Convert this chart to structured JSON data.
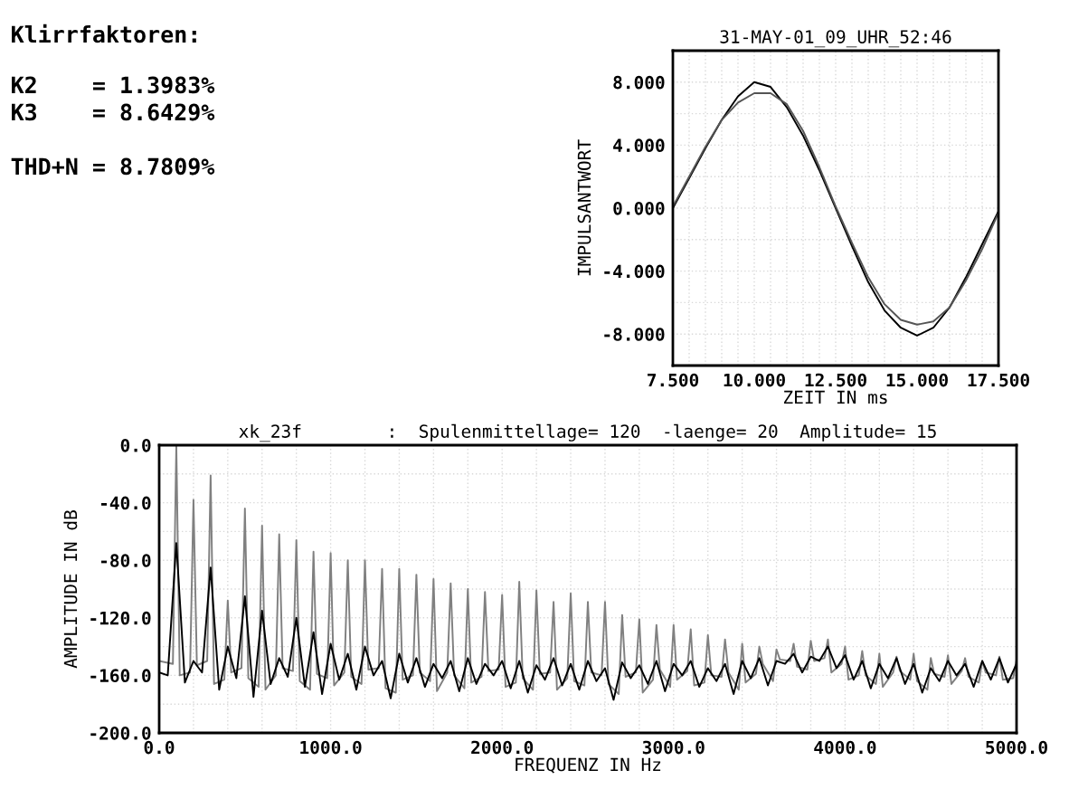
{
  "chart_data": [
    {
      "type": "other",
      "title": "Klirrfaktoren:",
      "annotations": [
        "K2    = 1.3983%",
        "K3    = 8.6429%",
        "THD+N = 8.7809%"
      ]
    },
    {
      "type": "line",
      "title": "31-MAY-01_09_UHR_52:46",
      "xlabel": "ZEIT IN ms",
      "ylabel": "IMPULSANTWORT",
      "x": [
        7.5,
        8,
        8.5,
        9,
        9.5,
        10,
        10.5,
        11,
        11.5,
        12,
        12.5,
        13,
        13.5,
        14,
        14.5,
        15,
        15.5,
        16,
        16.5,
        17,
        17.5
      ],
      "series": [
        {
          "color": "#000000",
          "values": [
            0,
            1.9,
            3.8,
            5.6,
            7.1,
            8.0,
            7.7,
            6.4,
            4.6,
            2.4,
            0,
            -2.4,
            -4.7,
            -6.5,
            -7.6,
            -8.1,
            -7.6,
            -6.3,
            -4.4,
            -2.3,
            -0.2
          ]
        },
        {
          "color": "#555555",
          "values": [
            0.1,
            2.0,
            3.9,
            5.6,
            6.7,
            7.3,
            7.3,
            6.6,
            4.9,
            2.6,
            0.1,
            -2.2,
            -4.4,
            -6.1,
            -7.1,
            -7.4,
            -7.2,
            -6.3,
            -4.6,
            -2.6,
            -0.3
          ]
        }
      ],
      "xlim": [
        7.5,
        17.5
      ],
      "ylim": [
        -10,
        10
      ],
      "xticks": [
        {
          "value": 7.5,
          "label": "7.500"
        },
        {
          "value": 8,
          "label": null
        },
        {
          "value": 8.5,
          "label": null
        },
        {
          "value": 9,
          "label": null
        },
        {
          "value": 9.5,
          "label": null
        },
        {
          "value": 10,
          "label": "10.000"
        },
        {
          "value": 10.5,
          "label": null
        },
        {
          "value": 11,
          "label": null
        },
        {
          "value": 11.5,
          "label": null
        },
        {
          "value": 12,
          "label": null
        },
        {
          "value": 12.5,
          "label": "12.500"
        },
        {
          "value": 13,
          "label": null
        },
        {
          "value": 13.5,
          "label": null
        },
        {
          "value": 14,
          "label": null
        },
        {
          "value": 14.5,
          "label": null
        },
        {
          "value": 15,
          "label": "15.000"
        },
        {
          "value": 15.5,
          "label": null
        },
        {
          "value": 16,
          "label": null
        },
        {
          "value": 16.5,
          "label": null
        },
        {
          "value": 17,
          "label": null
        },
        {
          "value": 17.5,
          "label": "17.500"
        }
      ],
      "yticks": [
        {
          "value": -8,
          "label": "-8.000"
        },
        {
          "value": -6,
          "label": null
        },
        {
          "value": -4,
          "label": "-4.000"
        },
        {
          "value": -2,
          "label": null
        },
        {
          "value": 0,
          "label": "0.000"
        },
        {
          "value": 2,
          "label": null
        },
        {
          "value": 4,
          "label": "4.000"
        },
        {
          "value": 6,
          "label": null
        },
        {
          "value": 8,
          "label": "8.000"
        }
      ],
      "grid": true
    },
    {
      "type": "line",
      "title": "xk_23f        :  Spulenmittellage= 120  -laenge= 20  Amplitude= 15",
      "xlabel": "FREQUENZ IN Hz",
      "ylabel": "AMPLITUDE IN dB",
      "x": [
        0,
        50,
        100,
        150,
        200,
        250,
        300,
        350,
        400,
        450,
        500,
        550,
        600,
        650,
        700,
        750,
        800,
        850,
        900,
        950,
        1000,
        1050,
        1100,
        1150,
        1200,
        1250,
        1300,
        1350,
        1400,
        1450,
        1500,
        1550,
        1600,
        1650,
        1700,
        1750,
        1800,
        1850,
        1900,
        1950,
        2000,
        2050,
        2100,
        2150,
        2200,
        2250,
        2300,
        2350,
        2400,
        2450,
        2500,
        2550,
        2600,
        2650,
        2700,
        2750,
        2800,
        2850,
        2900,
        2950,
        3000,
        3050,
        3100,
        3150,
        3200,
        3250,
        3300,
        3350,
        3400,
        3450,
        3500,
        3550,
        3600,
        3650,
        3700,
        3750,
        3800,
        3850,
        3900,
        3950,
        4000,
        4050,
        4100,
        4150,
        4200,
        4250,
        4300,
        4350,
        4400,
        4450,
        4500,
        4550,
        4600,
        4650,
        4700,
        4750,
        4800,
        4850,
        4900,
        4950,
        5000
      ],
      "series": [
        {
          "color": "#808080",
          "x": [
            0,
            80,
            100,
            120,
            180,
            200,
            220,
            280,
            300,
            320,
            380,
            400,
            420,
            480,
            500,
            520,
            580,
            600,
            620,
            680,
            700,
            720,
            780,
            800,
            820,
            880,
            900,
            920,
            980,
            1000,
            1020,
            1080,
            1100,
            1120,
            1180,
            1200,
            1220,
            1280,
            1300,
            1320,
            1380,
            1400,
            1420,
            1480,
            1500,
            1520,
            1580,
            1600,
            1620,
            1680,
            1700,
            1720,
            1780,
            1800,
            1820,
            1880,
            1900,
            1920,
            1980,
            2000,
            2020,
            2080,
            2100,
            2120,
            2180,
            2200,
            2220,
            2280,
            2300,
            2320,
            2380,
            2400,
            2420,
            2480,
            2500,
            2520,
            2580,
            2600,
            2620,
            2680,
            2700,
            2720,
            2780,
            2800,
            2820,
            2880,
            2900,
            2920,
            2980,
            3000,
            3020,
            3080,
            3100,
            3120,
            3180,
            3200,
            3220,
            3280,
            3300,
            3320,
            3380,
            3400,
            3420,
            3480,
            3500,
            3520,
            3580,
            3600,
            3620,
            3680,
            3700,
            3720,
            3780,
            3800,
            3820,
            3880,
            3900,
            3920,
            3980,
            4000,
            4020,
            4080,
            4100,
            4120,
            4180,
            4200,
            4220,
            4280,
            4300,
            4320,
            4380,
            4400,
            4420,
            4480,
            4500,
            4520,
            4580,
            4600,
            4620,
            4680,
            4700,
            4720,
            4780,
            4800,
            4820,
            4880,
            4900,
            4920,
            4980,
            5000
          ],
          "values": [
            -150,
            -152,
            0,
            -160,
            -158,
            -38,
            -153,
            -150,
            -21,
            -166,
            -163,
            -108,
            -158,
            -155,
            -44,
            -162,
            -168,
            -56,
            -170,
            -160,
            -62,
            -155,
            -157,
            -66,
            -164,
            -170,
            -74,
            -159,
            -162,
            -75,
            -167,
            -158,
            -80,
            -161,
            -166,
            -80,
            -156,
            -155,
            -86,
            -169,
            -172,
            -86,
            -163,
            -160,
            -90,
            -158,
            -164,
            -93,
            -171,
            -158,
            -96,
            -160,
            -169,
            -100,
            -165,
            -161,
            -102,
            -157,
            -156,
            -104,
            -168,
            -165,
            -95,
            -162,
            -170,
            -101,
            -159,
            -158,
            -109,
            -170,
            -162,
            -103,
            -164,
            -167,
            -109,
            -158,
            -160,
            -109,
            -166,
            -173,
            -118,
            -161,
            -158,
            -121,
            -172,
            -163,
            -125,
            -156,
            -168,
            -125,
            -163,
            -157,
            -128,
            -167,
            -165,
            -132,
            -160,
            -161,
            -135,
            -158,
            -170,
            -138,
            -165,
            -159,
            -140,
            -152,
            -164,
            -142,
            -149,
            -150,
            -138,
            -154,
            -156,
            -136,
            -150,
            -148,
            -135,
            -158,
            -152,
            -140,
            -163,
            -160,
            -143,
            -160,
            -166,
            -145,
            -168,
            -158,
            -147,
            -157,
            -163,
            -145,
            -164,
            -170,
            -148,
            -159,
            -161,
            -146,
            -166,
            -157,
            -148,
            -161,
            -165,
            -150,
            -158,
            -160,
            -147,
            -163,
            -162,
            -149
          ]
        },
        {
          "color": "#000000",
          "values": [
            -158,
            -160,
            -68,
            -165,
            -150,
            -158,
            -85,
            -170,
            -140,
            -162,
            -105,
            -175,
            -115,
            -166,
            -148,
            -161,
            -120,
            -168,
            -130,
            -173,
            -138,
            -163,
            -145,
            -170,
            -140,
            -160,
            -150,
            -176,
            -145,
            -165,
            -148,
            -168,
            -152,
            -162,
            -150,
            -171,
            -148,
            -166,
            -152,
            -160,
            -150,
            -169,
            -150,
            -172,
            -153,
            -163,
            -148,
            -167,
            -152,
            -170,
            -150,
            -164,
            -155,
            -177,
            -151,
            -162,
            -153,
            -166,
            -150,
            -171,
            -152,
            -160,
            -150,
            -168,
            -155,
            -164,
            -152,
            -173,
            -150,
            -162,
            -148,
            -167,
            -150,
            -152,
            -145,
            -158,
            -147,
            -150,
            -140,
            -155,
            -146,
            -163,
            -150,
            -169,
            -152,
            -162,
            -148,
            -166,
            -152,
            -172,
            -155,
            -164,
            -150,
            -160,
            -152,
            -168,
            -150,
            -163,
            -148,
            -165,
            -152
          ]
        }
      ],
      "xlim": [
        0,
        5000
      ],
      "ylim": [
        -200,
        0
      ],
      "xticks": [
        {
          "value": 0,
          "label": "0.0"
        },
        {
          "value": 200,
          "label": null
        },
        {
          "value": 400,
          "label": null
        },
        {
          "value": 600,
          "label": null
        },
        {
          "value": 800,
          "label": null
        },
        {
          "value": 1000,
          "label": "1000.0"
        },
        {
          "value": 1200,
          "label": null
        },
        {
          "value": 1400,
          "label": null
        },
        {
          "value": 1600,
          "label": null
        },
        {
          "value": 1800,
          "label": null
        },
        {
          "value": 2000,
          "label": "2000.0"
        },
        {
          "value": 2200,
          "label": null
        },
        {
          "value": 2400,
          "label": null
        },
        {
          "value": 2600,
          "label": null
        },
        {
          "value": 2800,
          "label": null
        },
        {
          "value": 3000,
          "label": "3000.0"
        },
        {
          "value": 3200,
          "label": null
        },
        {
          "value": 3400,
          "label": null
        },
        {
          "value": 3600,
          "label": null
        },
        {
          "value": 3800,
          "label": null
        },
        {
          "value": 4000,
          "label": "4000.0"
        },
        {
          "value": 4200,
          "label": null
        },
        {
          "value": 4400,
          "label": null
        },
        {
          "value": 4600,
          "label": null
        },
        {
          "value": 4800,
          "label": null
        },
        {
          "value": 5000,
          "label": "5000.0"
        }
      ],
      "yticks": [
        {
          "value": -200,
          "label": "-200.0"
        },
        {
          "value": -180,
          "label": null
        },
        {
          "value": -160,
          "label": "-160.0"
        },
        {
          "value": -140,
          "label": null
        },
        {
          "value": -120,
          "label": "-120.0"
        },
        {
          "value": -100,
          "label": null
        },
        {
          "value": -80,
          "label": "-80.0"
        },
        {
          "value": -60,
          "label": null
        },
        {
          "value": -40,
          "label": "-40.0"
        },
        {
          "value": -20,
          "label": null
        },
        {
          "value": 0,
          "label": "0.0"
        }
      ],
      "grid": true
    }
  ]
}
